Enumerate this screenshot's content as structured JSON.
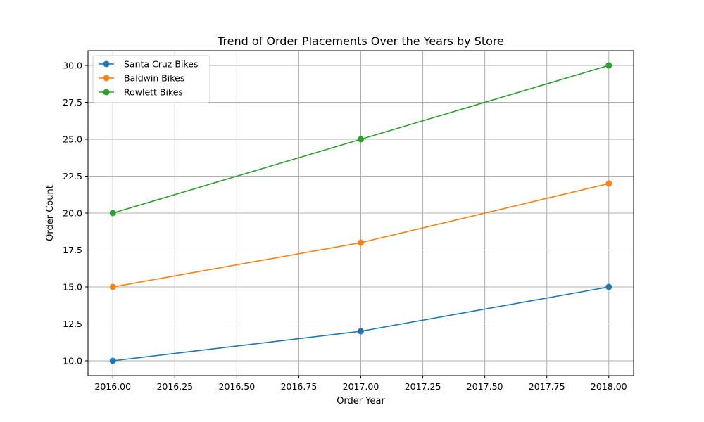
{
  "chart_data": {
    "type": "line",
    "title": "Trend of Order Placements Over the Years by Store",
    "xlabel": "Order Year",
    "ylabel": "Order Count",
    "x": [
      2016,
      2017,
      2018
    ],
    "xlim": [
      2015.9,
      2018.1
    ],
    "ylim": [
      9,
      31
    ],
    "xticks": [
      "2016.00",
      "2016.25",
      "2016.50",
      "2016.75",
      "2017.00",
      "2017.25",
      "2017.50",
      "2017.75",
      "2018.00"
    ],
    "yticks": [
      "10.0",
      "12.5",
      "15.0",
      "17.5",
      "20.0",
      "22.5",
      "25.0",
      "27.5",
      "30.0"
    ],
    "grid": true,
    "legend_position": "top-left",
    "marker": "circle",
    "series": [
      {
        "name": "Santa Cruz Bikes",
        "color": "#1f77b4",
        "values": [
          10,
          12,
          15
        ]
      },
      {
        "name": "Baldwin Bikes",
        "color": "#ff7f0e",
        "values": [
          15,
          18,
          22
        ]
      },
      {
        "name": "Rowlett Bikes",
        "color": "#2ca02c",
        "values": [
          20,
          25,
          30
        ]
      }
    ]
  }
}
